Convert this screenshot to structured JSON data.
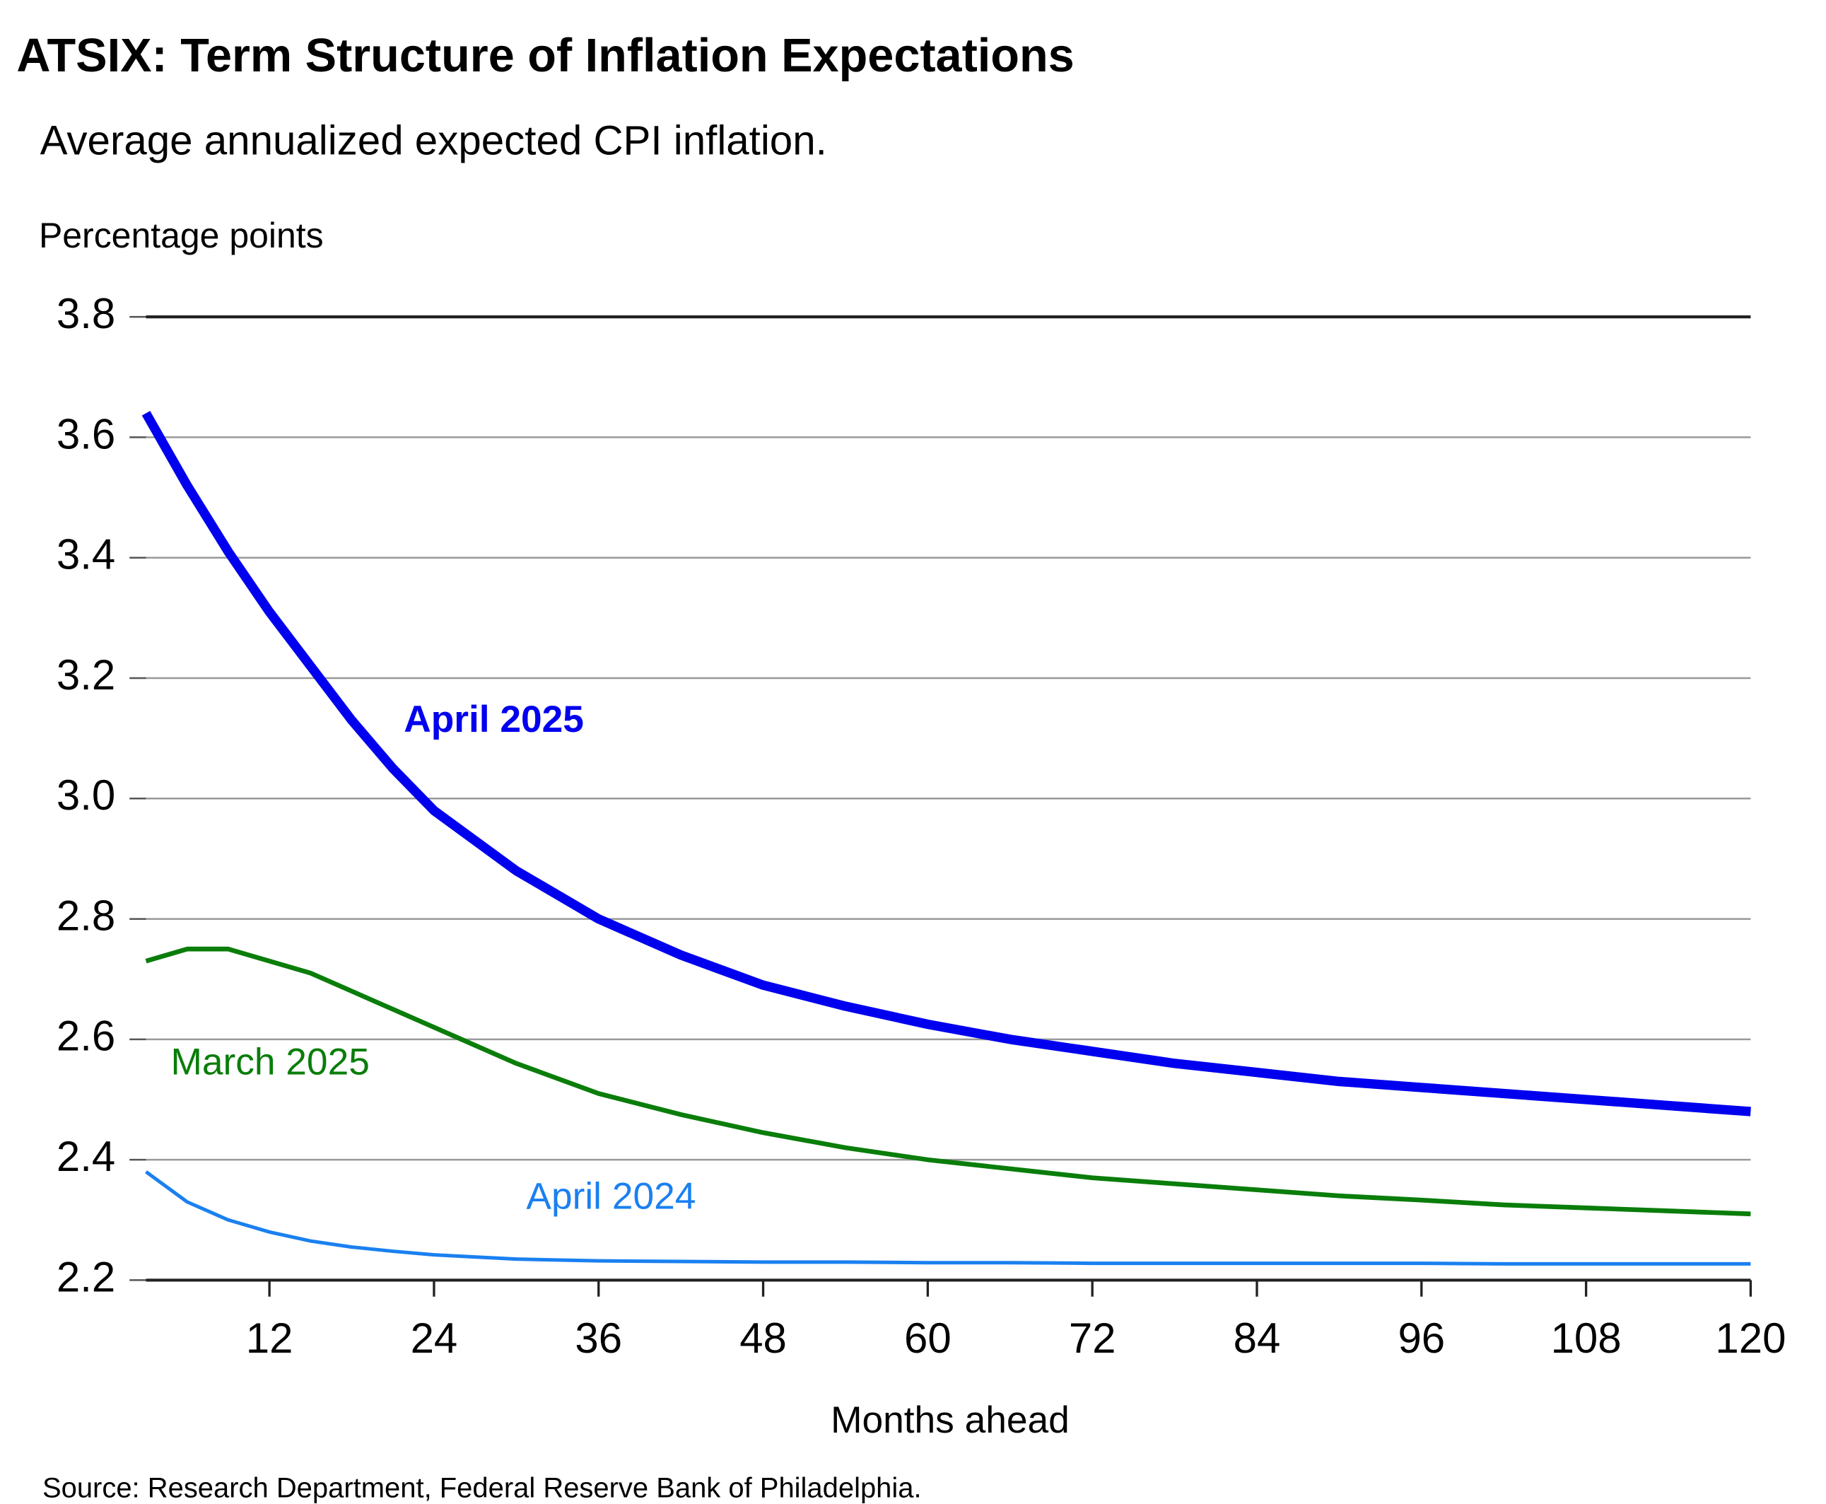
{
  "chart_data": {
    "type": "line",
    "title": "ATSIX: Term Structure of Inflation Expectations",
    "subtitle": "Average annualized expected CPI inflation.",
    "y_label": "Percentage points",
    "x_label": "Months ahead",
    "source": "Source: Research Department, Federal Reserve Bank of Philadelphia.",
    "x": [
      3,
      6,
      9,
      12,
      15,
      18,
      21,
      24,
      30,
      36,
      42,
      48,
      54,
      60,
      66,
      72,
      78,
      84,
      90,
      96,
      102,
      108,
      114,
      120
    ],
    "series": [
      {
        "name": "April 2025",
        "color": "#0000ee",
        "values": [
          3.64,
          3.52,
          3.41,
          3.31,
          3.22,
          3.13,
          3.05,
          2.98,
          2.88,
          2.8,
          2.74,
          2.69,
          2.655,
          2.625,
          2.6,
          2.58,
          2.56,
          2.545,
          2.53,
          2.52,
          2.51,
          2.5,
          2.49,
          2.48
        ]
      },
      {
        "name": "March 2025",
        "color": "#0a7d0a",
        "values": [
          2.73,
          2.75,
          2.75,
          2.73,
          2.71,
          2.68,
          2.65,
          2.62,
          2.56,
          2.51,
          2.475,
          2.445,
          2.42,
          2.4,
          2.385,
          2.37,
          2.36,
          2.35,
          2.34,
          2.333,
          2.325,
          2.32,
          2.315,
          2.31
        ]
      },
      {
        "name": "April 2024",
        "color": "#1a80f0",
        "values": [
          2.38,
          2.33,
          2.3,
          2.28,
          2.265,
          2.255,
          2.248,
          2.242,
          2.235,
          2.232,
          2.231,
          2.23,
          2.23,
          2.229,
          2.229,
          2.228,
          2.228,
          2.228,
          2.228,
          2.228,
          2.227,
          2.227,
          2.227,
          2.227
        ]
      }
    ],
    "xlim": [
      3,
      120
    ],
    "ylim": [
      2.2,
      3.8
    ],
    "xticks": [
      12,
      24,
      36,
      48,
      60,
      72,
      84,
      96,
      108,
      120
    ],
    "yticks": [
      2.2,
      2.4,
      2.6,
      2.8,
      {
        "value": 3,
        "label": "3.0"
      },
      3.2,
      3.4,
      3.6,
      3.8
    ],
    "grid": true
  }
}
